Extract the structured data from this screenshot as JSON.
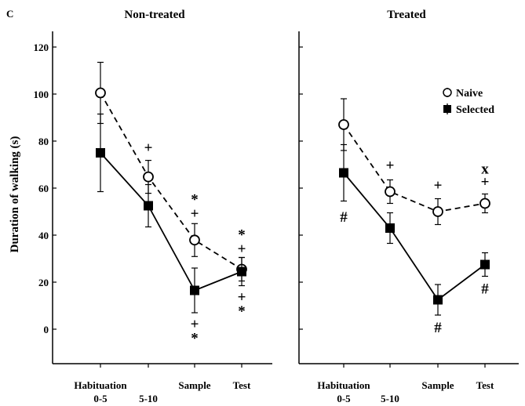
{
  "panel_label": "C",
  "ylabel": "Duration of walking (s)",
  "legend": {
    "naive": "Naive",
    "selected": "Selected"
  },
  "chart_data": [
    {
      "type": "line",
      "title": "Non-treated",
      "ylabel": "Duration of walking (s)",
      "ylim": [
        -15,
        130
      ],
      "yticks": [
        0,
        20,
        40,
        60,
        80,
        100,
        120
      ],
      "categories": [
        {
          "line1": "Habituation",
          "line2": "0-5"
        },
        {
          "line1": "",
          "line2": "5-10"
        },
        {
          "line1": "Sample",
          "line2": ""
        },
        {
          "line1": "Test",
          "line2": ""
        }
      ],
      "series": [
        {
          "name": "Naive",
          "style": "dashed",
          "marker": "open-circle",
          "values": [
            100.5,
            64.8,
            37.9,
            25.5
          ],
          "errors": [
            13,
            7,
            7,
            5
          ]
        },
        {
          "name": "Selected",
          "style": "solid",
          "marker": "filled-square",
          "values": [
            75,
            52.5,
            16.5,
            24.5
          ],
          "errors": [
            16.5,
            9,
            9.5,
            6
          ]
        }
      ],
      "annotations": [
        {
          "x": 1,
          "y": 77.5,
          "text": "+"
        },
        {
          "x": 2,
          "y": 55.5,
          "text": "*"
        },
        {
          "x": 2,
          "y": 49.5,
          "text": "+"
        },
        {
          "x": 2,
          "y": 2.5,
          "text": "+"
        },
        {
          "x": 2,
          "y": -3.5,
          "text": "*"
        },
        {
          "x": 3,
          "y": 40.5,
          "text": "*"
        },
        {
          "x": 3,
          "y": 34.5,
          "text": "+"
        },
        {
          "x": 3,
          "y": 14,
          "text": "+"
        },
        {
          "x": 3,
          "y": 8,
          "text": "*"
        }
      ]
    },
    {
      "type": "line",
      "title": "Treated",
      "ylim": [
        -15,
        130
      ],
      "categories": [
        {
          "line1": "Habituation",
          "line2": "0-5"
        },
        {
          "line1": "",
          "line2": "5-10"
        },
        {
          "line1": "Sample",
          "line2": ""
        },
        {
          "line1": "Test",
          "line2": ""
        }
      ],
      "series": [
        {
          "name": "Naive",
          "style": "dashed",
          "marker": "open-circle",
          "values": [
            87,
            58.5,
            50,
            53.5
          ],
          "errors": [
            11,
            5,
            5.5,
            4
          ]
        },
        {
          "name": "Selected",
          "style": "solid",
          "marker": "filled-square",
          "values": [
            66.5,
            43,
            12.5,
            27.5
          ],
          "errors": [
            12,
            6.5,
            6.5,
            5
          ]
        }
      ],
      "annotations": [
        {
          "x": 0,
          "y": 48,
          "text": "#"
        },
        {
          "x": 1,
          "y": 70,
          "text": "+"
        },
        {
          "x": 2,
          "y": 61.5,
          "text": "+"
        },
        {
          "x": 2,
          "y": 1,
          "text": "#"
        },
        {
          "x": 3,
          "y": 68.5,
          "text": "x"
        },
        {
          "x": 3,
          "y": 63,
          "text": "+"
        },
        {
          "x": 3,
          "y": 17.5,
          "text": "#"
        }
      ]
    }
  ]
}
